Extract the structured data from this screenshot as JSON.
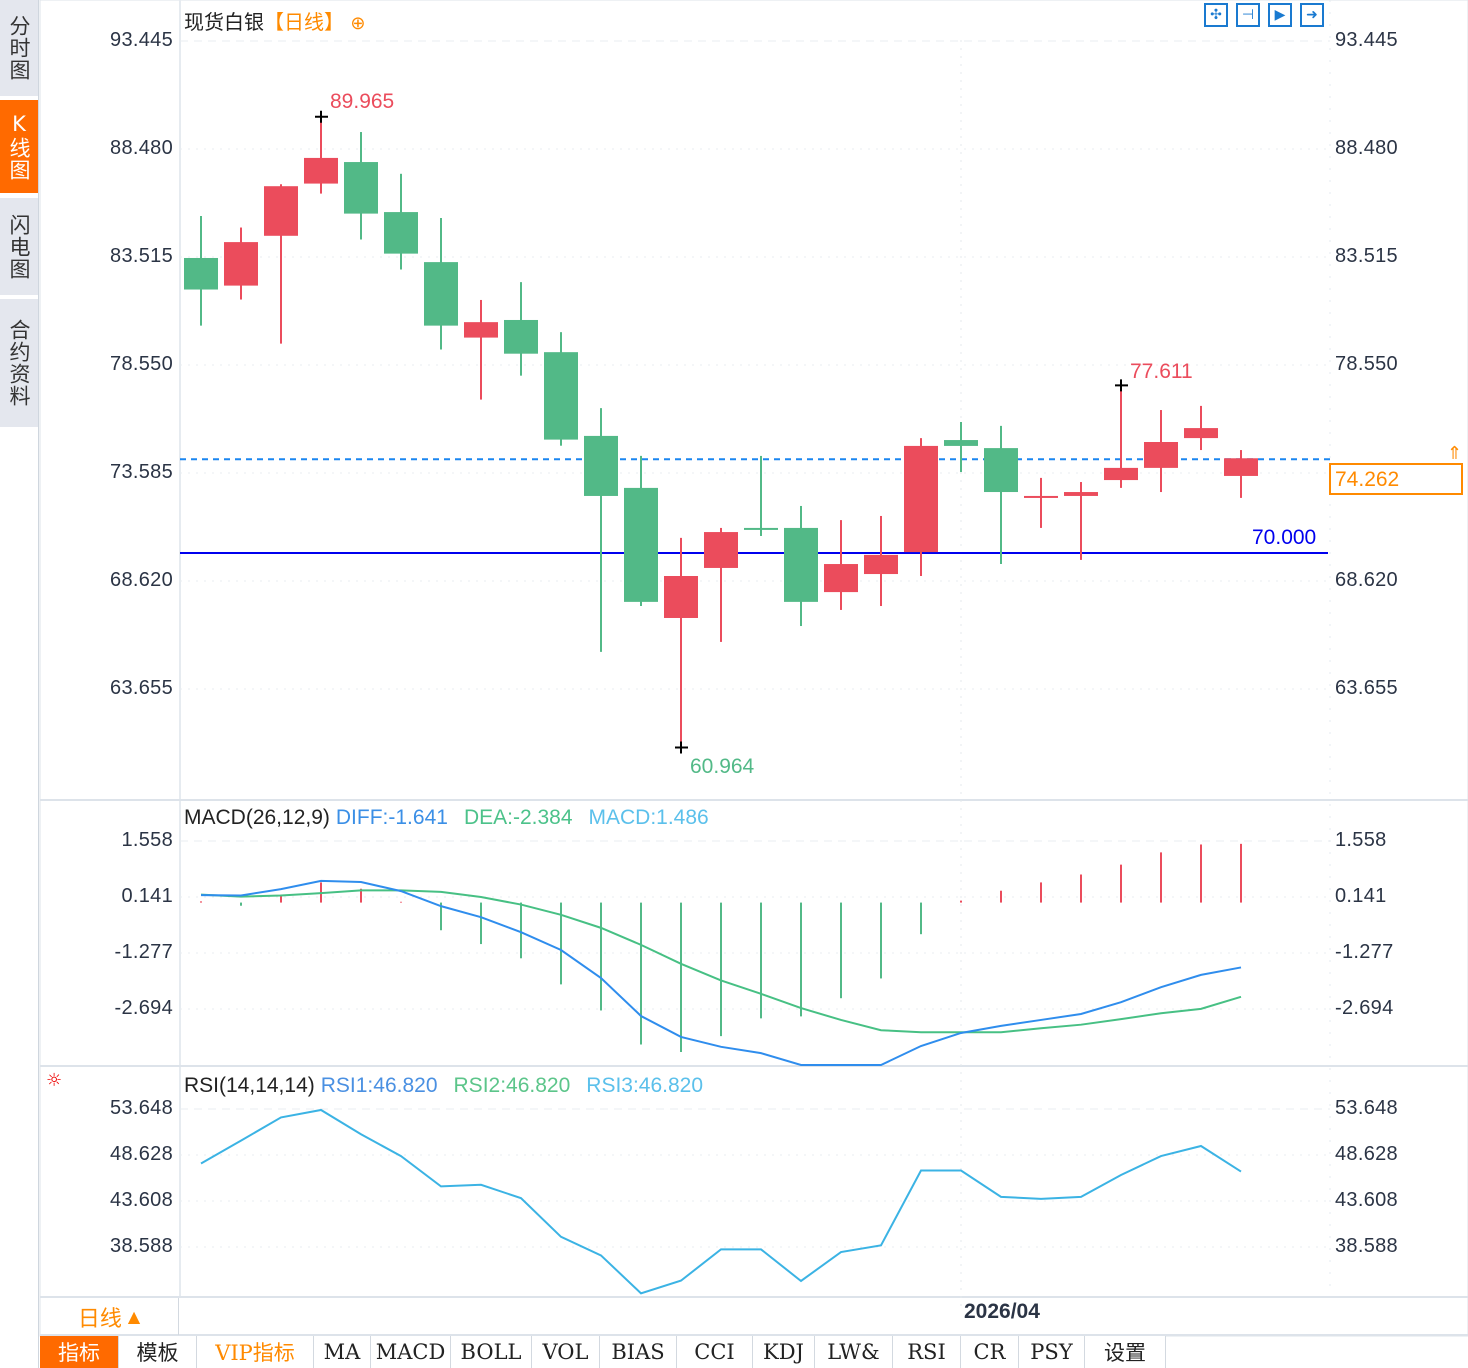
{
  "sidebar": {
    "tabs": [
      {
        "label": "分时图",
        "active": false
      },
      {
        "label": "K线图",
        "active": true
      },
      {
        "label": "闪电图",
        "active": false
      },
      {
        "label": "合约资料",
        "active": false
      }
    ]
  },
  "header": {
    "symbol": "现货白银",
    "period": "【日线】",
    "add_icon": "circle-plus-icon"
  },
  "toolbar": {
    "icons": [
      "move-icon",
      "zoom-in-range-icon",
      "play-icon",
      "goto-latest-icon"
    ]
  },
  "price_axis": {
    "ticks": [
      "93.445",
      "88.480",
      "83.515",
      "78.550",
      "73.585",
      "68.620",
      "63.655"
    ]
  },
  "markers": {
    "high": "89.965",
    "low": "60.964",
    "recent_high": "77.611",
    "last_price": "74.262",
    "level_line": "70.000"
  },
  "macd": {
    "title": "MACD(26,12,9)",
    "diff": "DIFF:-1.641",
    "dea": "DEA:-2.384",
    "macd": "MACD:1.486",
    "ticks": [
      "1.558",
      "0.141",
      "-1.277",
      "-2.694"
    ]
  },
  "rsi": {
    "title": "RSI(14,14,14)",
    "rsi1": "RSI1:46.820",
    "rsi2": "RSI2:46.820",
    "rsi3": "RSI3:46.820",
    "ticks": [
      "53.648",
      "48.628",
      "43.608",
      "38.588"
    ]
  },
  "period_selector": {
    "label": "日线",
    "arrow": "▲"
  },
  "date_axis": {
    "label": "2026/04"
  },
  "bottom_tabs": [
    {
      "label": "指标",
      "active": true
    },
    {
      "label": "模板"
    },
    {
      "label": "VIP指标",
      "vip": true
    },
    {
      "label": "MA"
    },
    {
      "label": "MACD"
    },
    {
      "label": "BOLL"
    },
    {
      "label": "VOL"
    },
    {
      "label": "BIAS"
    },
    {
      "label": "CCI"
    },
    {
      "label": "KDJ"
    },
    {
      "label": "LW&"
    },
    {
      "label": "RSI"
    },
    {
      "label": "CR"
    },
    {
      "label": "PSY"
    },
    {
      "label": "设置"
    }
  ],
  "colors": {
    "up": "#eb4c5c",
    "down": "#52b987",
    "accent": "#ff6a00",
    "diff": "#2f8ded",
    "dea": "#47c084",
    "rsi": "#3bb3e4",
    "level": "#0000ee",
    "last": "#1a86f0"
  },
  "chart_data": {
    "type": "candlestick",
    "title": "现货白银【日线】",
    "ylim": [
      59.5,
      93.445
    ],
    "candles_ohlc_note": "open, close, high, low",
    "candles": [
      [
        83.47,
        82.02,
        85.4,
        80.36
      ],
      [
        82.2,
        84.2,
        84.87,
        81.56
      ],
      [
        84.49,
        86.77,
        86.86,
        79.53
      ],
      [
        86.89,
        88.07,
        89.965,
        86.43
      ],
      [
        87.88,
        85.51,
        89.26,
        84.32
      ],
      [
        85.58,
        83.67,
        87.34,
        82.94
      ],
      [
        83.28,
        80.36,
        85.31,
        79.26
      ],
      [
        79.81,
        80.52,
        81.54,
        76.96
      ],
      [
        80.62,
        79.07,
        82.36,
        78.06
      ],
      [
        79.14,
        75.12,
        80.06,
        74.84
      ],
      [
        75.29,
        72.53,
        76.57,
        65.36
      ],
      [
        72.9,
        67.66,
        74.37,
        67.47
      ],
      [
        66.92,
        68.85,
        70.6,
        60.964
      ],
      [
        69.22,
        70.87,
        71.06,
        65.82
      ],
      [
        71.06,
        70.97,
        74.37,
        70.69
      ],
      [
        71.06,
        67.66,
        72.07,
        66.55
      ],
      [
        68.11,
        69.4,
        71.42,
        67.29
      ],
      [
        68.94,
        69.82,
        71.61,
        67.47
      ],
      [
        69.95,
        74.83,
        75.19,
        68.85
      ],
      [
        75.1,
        74.83,
        75.93,
        73.63
      ],
      [
        74.73,
        72.71,
        75.75,
        69.4
      ],
      [
        72.48,
        72.53,
        73.36,
        71.06
      ],
      [
        72.53,
        72.71,
        73.17,
        69.59
      ],
      [
        73.26,
        73.82,
        77.611,
        72.9
      ],
      [
        73.82,
        75.01,
        76.48,
        72.71
      ],
      [
        75.19,
        75.65,
        76.67,
        74.64
      ],
      [
        73.45,
        74.262,
        74.64,
        72.44
      ]
    ],
    "level_line": 70.0,
    "last_price": 74.262,
    "macd_series": {
      "ylim": [
        -4.2,
        1.7
      ],
      "diff": [
        0.19,
        0.18,
        0.34,
        0.55,
        0.52,
        0.29,
        -0.09,
        -0.37,
        -0.75,
        -1.2,
        -1.91,
        -2.87,
        -3.4,
        -3.65,
        -3.81,
        -4.11,
        -4.11,
        -4.11,
        -3.63,
        -3.3,
        -3.12,
        -2.97,
        -2.82,
        -2.52,
        -2.14,
        -1.83,
        -1.641
      ],
      "dea": [
        0.2,
        0.15,
        0.18,
        0.24,
        0.31,
        0.31,
        0.27,
        0.14,
        -0.05,
        -0.31,
        -0.64,
        -1.07,
        -1.55,
        -1.97,
        -2.31,
        -2.67,
        -2.97,
        -3.23,
        -3.28,
        -3.28,
        -3.28,
        -3.18,
        -3.09,
        -2.95,
        -2.8,
        -2.69,
        -2.384
      ],
      "hist": [
        0.03,
        -0.08,
        0.2,
        0.51,
        0.35,
        0.02,
        -0.7,
        -1.05,
        -1.41,
        -2.07,
        -2.73,
        -3.59,
        -3.78,
        -3.38,
        -2.93,
        -2.88,
        -2.42,
        -1.92,
        -0.8,
        0.05,
        0.3,
        0.51,
        0.71,
        0.96,
        1.27,
        1.47,
        1.486
      ]
    },
    "rsi_series": {
      "ylim": [
        33,
        55
      ],
      "values": [
        47.7,
        50.2,
        52.73,
        53.54,
        50.89,
        48.51,
        45.2,
        45.38,
        43.92,
        39.7,
        37.67,
        33.53,
        34.92,
        38.33,
        38.33,
        34.88,
        38.04,
        38.77,
        46.93,
        46.93,
        44.06,
        43.84,
        44.06,
        46.45,
        48.51,
        49.61,
        46.82
      ]
    }
  }
}
